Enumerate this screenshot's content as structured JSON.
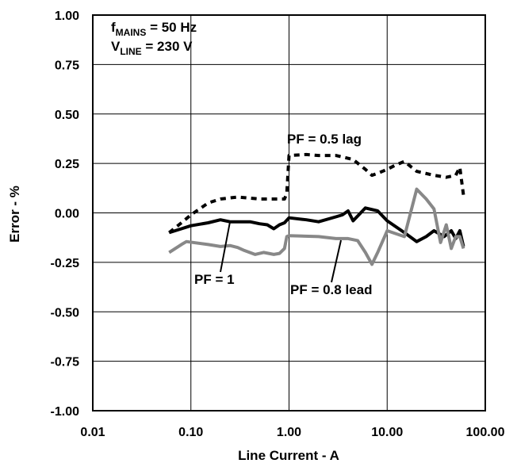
{
  "chart_data": {
    "type": "line",
    "xscale": "log",
    "xlim": [
      0.01,
      100
    ],
    "ylim": [
      -1.0,
      1.0
    ],
    "grid": true,
    "xlabel": "Line Current - A",
    "ylabel": "Error - %",
    "xticks": [
      "0.01",
      "0.10",
      "1.00",
      "10.00",
      "100.00"
    ],
    "yticks": [
      "1.00",
      "0.75",
      "0.50",
      "0.25",
      "0.00",
      "-0.25",
      "-0.50",
      "-0.75",
      "-1.00"
    ],
    "conditions": {
      "line1_main": "f",
      "line1_sub": "MAINS",
      "line1_rest": " = 50 Hz",
      "line2_main": "V",
      "line2_sub": "LINE",
      "line2_rest": " = 230 V"
    },
    "series": [
      {
        "name": "PF = 1",
        "color": "#000000",
        "style": "solid",
        "points": [
          [
            0.06,
            -0.1
          ],
          [
            0.08,
            -0.08
          ],
          [
            0.1,
            -0.065
          ],
          [
            0.15,
            -0.05
          ],
          [
            0.2,
            -0.035
          ],
          [
            0.25,
            -0.045
          ],
          [
            0.3,
            -0.045
          ],
          [
            0.4,
            -0.045
          ],
          [
            0.5,
            -0.055
          ],
          [
            0.6,
            -0.06
          ],
          [
            0.7,
            -0.08
          ],
          [
            0.8,
            -0.06
          ],
          [
            0.9,
            -0.05
          ],
          [
            1.0,
            -0.025
          ],
          [
            1.5,
            -0.035
          ],
          [
            2.0,
            -0.045
          ],
          [
            3.0,
            -0.02
          ],
          [
            3.5,
            -0.01
          ],
          [
            4.0,
            0.01
          ],
          [
            4.5,
            -0.04
          ],
          [
            6.0,
            0.025
          ],
          [
            8.0,
            0.01
          ],
          [
            10.0,
            -0.04
          ],
          [
            15.0,
            -0.1
          ],
          [
            20.0,
            -0.145
          ],
          [
            25.0,
            -0.12
          ],
          [
            30.0,
            -0.09
          ],
          [
            38.0,
            -0.12
          ],
          [
            45.0,
            -0.09
          ],
          [
            50.0,
            -0.13
          ],
          [
            55.0,
            -0.09
          ],
          [
            60.0,
            -0.17
          ]
        ]
      },
      {
        "name": "PF = 0.8 lead",
        "color": "#888888",
        "style": "solid",
        "points": [
          [
            0.06,
            -0.2
          ],
          [
            0.08,
            -0.16
          ],
          [
            0.09,
            -0.145
          ],
          [
            0.15,
            -0.16
          ],
          [
            0.2,
            -0.17
          ],
          [
            0.25,
            -0.165
          ],
          [
            0.3,
            -0.175
          ],
          [
            0.35,
            -0.19
          ],
          [
            0.45,
            -0.21
          ],
          [
            0.55,
            -0.2
          ],
          [
            0.7,
            -0.21
          ],
          [
            0.8,
            -0.205
          ],
          [
            0.9,
            -0.18
          ],
          [
            0.95,
            -0.12
          ],
          [
            1.0,
            -0.115
          ],
          [
            2.0,
            -0.12
          ],
          [
            3.0,
            -0.13
          ],
          [
            4.0,
            -0.13
          ],
          [
            5.0,
            -0.14
          ],
          [
            6.0,
            -0.2
          ],
          [
            7.0,
            -0.26
          ],
          [
            8.0,
            -0.2
          ],
          [
            10.0,
            -0.09
          ],
          [
            15.0,
            -0.12
          ],
          [
            20.0,
            0.12
          ],
          [
            25.0,
            0.07
          ],
          [
            30.0,
            0.02
          ],
          [
            35.0,
            -0.15
          ],
          [
            40.0,
            -0.06
          ],
          [
            45.0,
            -0.18
          ],
          [
            50.0,
            -0.12
          ],
          [
            55.0,
            -0.12
          ],
          [
            60.0,
            -0.18
          ]
        ]
      },
      {
        "name": "PF = 0.5 lag",
        "color": "#000000",
        "style": "dashed",
        "points": [
          [
            0.06,
            -0.1
          ],
          [
            0.08,
            -0.05
          ],
          [
            0.1,
            -0.01
          ],
          [
            0.15,
            0.05
          ],
          [
            0.2,
            0.07
          ],
          [
            0.3,
            0.08
          ],
          [
            0.5,
            0.07
          ],
          [
            0.7,
            0.07
          ],
          [
            0.9,
            0.07
          ],
          [
            0.95,
            0.1
          ],
          [
            1.0,
            0.29
          ],
          [
            1.5,
            0.295
          ],
          [
            2.0,
            0.29
          ],
          [
            3.0,
            0.29
          ],
          [
            4.5,
            0.27
          ],
          [
            6.0,
            0.22
          ],
          [
            7.0,
            0.19
          ],
          [
            8.0,
            0.2
          ],
          [
            10.0,
            0.22
          ],
          [
            12.0,
            0.24
          ],
          [
            15.0,
            0.26
          ],
          [
            20.0,
            0.21
          ],
          [
            30.0,
            0.19
          ],
          [
            40.0,
            0.18
          ],
          [
            50.0,
            0.19
          ],
          [
            55.0,
            0.23
          ],
          [
            60.0,
            0.09
          ]
        ]
      }
    ],
    "annotations": [
      "PF = 0.5 lag",
      "PF = 1",
      "PF = 0.8 lead"
    ]
  }
}
